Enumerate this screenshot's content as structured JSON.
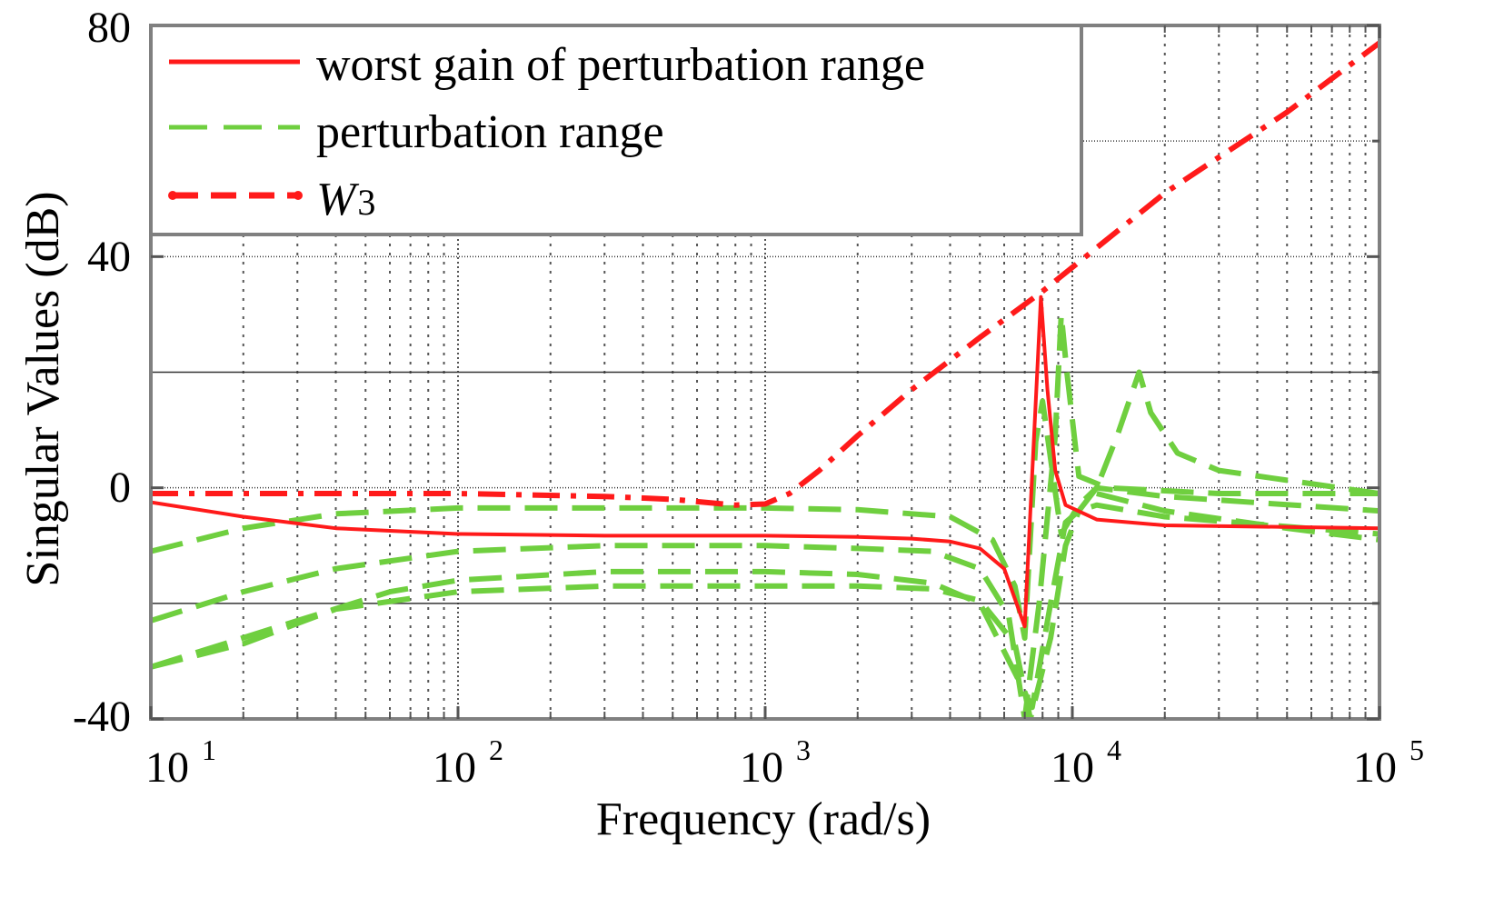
{
  "chart_data": {
    "type": "line",
    "xscale": "log",
    "xlabel": "Frequency (rad/s)",
    "ylabel": "Singular Values (dB)",
    "xlim": [
      10,
      100000
    ],
    "ylim": [
      -40,
      80
    ],
    "x_ticks": [
      {
        "value": 10,
        "base": "10",
        "exp": "1"
      },
      {
        "value": 100,
        "base": "10",
        "exp": "2"
      },
      {
        "value": 1000,
        "base": "10",
        "exp": "3"
      },
      {
        "value": 10000,
        "base": "10",
        "exp": "4"
      },
      {
        "value": 100000,
        "base": "10",
        "exp": "5"
      }
    ],
    "y_ticks": [
      {
        "value": -40,
        "label": "-40"
      },
      {
        "value": 0,
        "label": "0"
      },
      {
        "value": 40,
        "label": "40"
      },
      {
        "value": 80,
        "label": "80"
      }
    ],
    "grid": true,
    "legend": {
      "position": "top-left",
      "entries": [
        {
          "label": "worst gain of perturbation range",
          "style": "solid-red"
        },
        {
          "label": "perturbation range",
          "style": "dashed-green"
        },
        {
          "label": "W",
          "subscript": "3",
          "style": "dashdot-red"
        }
      ]
    },
    "colors": {
      "red": "#ff1a1a",
      "green": "#6fcf3f",
      "grid": "#000000",
      "frame": "#808080"
    },
    "series": [
      {
        "name": "worst gain of perturbation range",
        "style": "solid",
        "color": "#ff1a1a",
        "points": [
          [
            10,
            -2.5
          ],
          [
            20,
            -5
          ],
          [
            40,
            -7
          ],
          [
            100,
            -8
          ],
          [
            300,
            -8.3
          ],
          [
            1000,
            -8.3
          ],
          [
            2000,
            -8.5
          ],
          [
            3000,
            -8.8
          ],
          [
            4000,
            -9.3
          ],
          [
            5000,
            -10.5
          ],
          [
            6000,
            -14
          ],
          [
            7000,
            -24
          ],
          [
            7900,
            33
          ],
          [
            8300,
            17
          ],
          [
            8800,
            3
          ],
          [
            9500,
            -3
          ],
          [
            12000,
            -5.5
          ],
          [
            20000,
            -6.5
          ],
          [
            100000,
            -7
          ]
        ]
      },
      {
        "name": "W3",
        "style": "dashdot",
        "color": "#ff1a1a",
        "points": [
          [
            10,
            -1
          ],
          [
            100,
            -1
          ],
          [
            300,
            -1.5
          ],
          [
            500,
            -2
          ],
          [
            800,
            -3
          ],
          [
            1000,
            -2.8
          ],
          [
            1200,
            -1
          ],
          [
            1500,
            3
          ],
          [
            2000,
            9
          ],
          [
            3000,
            17
          ],
          [
            5000,
            26
          ],
          [
            8000,
            34
          ],
          [
            20000,
            51
          ],
          [
            50000,
            65
          ],
          [
            100000,
            77
          ]
        ]
      },
      {
        "name": "perturbation range 1",
        "style": "dashed",
        "color": "#6fcf3f",
        "points": [
          [
            10,
            -11
          ],
          [
            20,
            -7
          ],
          [
            40,
            -4.5
          ],
          [
            100,
            -3.5
          ],
          [
            1000,
            -3.5
          ],
          [
            2000,
            -3.8
          ],
          [
            4000,
            -5
          ],
          [
            5500,
            -9
          ],
          [
            6500,
            -17
          ],
          [
            7000,
            -26
          ],
          [
            7600,
            8
          ],
          [
            8000,
            15
          ],
          [
            8600,
            3
          ],
          [
            9200,
            -8
          ],
          [
            10500,
            -3
          ],
          [
            12000,
            0
          ],
          [
            20000,
            -1.5
          ],
          [
            100000,
            -4
          ]
        ]
      },
      {
        "name": "perturbation range 2",
        "style": "dashed",
        "color": "#6fcf3f",
        "points": [
          [
            10,
            -23
          ],
          [
            20,
            -18
          ],
          [
            40,
            -14
          ],
          [
            100,
            -11
          ],
          [
            300,
            -10
          ],
          [
            1000,
            -10
          ],
          [
            2000,
            -10.5
          ],
          [
            3500,
            -11
          ],
          [
            5000,
            -14
          ],
          [
            6200,
            -22
          ],
          [
            7000,
            -40
          ],
          [
            7800,
            -20
          ],
          [
            8800,
            9
          ],
          [
            9200,
            30
          ],
          [
            9600,
            20
          ],
          [
            10500,
            2
          ],
          [
            13000,
            0
          ],
          [
            30000,
            -1
          ],
          [
            100000,
            -1
          ]
        ]
      },
      {
        "name": "perturbation range 3",
        "style": "dashed",
        "color": "#6fcf3f",
        "points": [
          [
            10,
            -31
          ],
          [
            20,
            -27
          ],
          [
            40,
            -21
          ],
          [
            100,
            -18
          ],
          [
            300,
            -17
          ],
          [
            1000,
            -17
          ],
          [
            2000,
            -17
          ],
          [
            3500,
            -17.5
          ],
          [
            5000,
            -19.5
          ],
          [
            6500,
            -27
          ],
          [
            7300,
            -40
          ],
          [
            8500,
            -26
          ],
          [
            9500,
            -10
          ],
          [
            10500,
            -4
          ],
          [
            12000,
            0
          ],
          [
            14000,
            9
          ],
          [
            16500,
            20
          ],
          [
            18000,
            13
          ],
          [
            22000,
            6
          ],
          [
            30000,
            3
          ],
          [
            100000,
            -1
          ]
        ]
      },
      {
        "name": "perturbation range 4",
        "style": "dashed",
        "color": "#6fcf3f",
        "points": [
          [
            10,
            -31
          ],
          [
            30,
            -23
          ],
          [
            60,
            -18
          ],
          [
            100,
            -16
          ],
          [
            300,
            -14.5
          ],
          [
            1000,
            -14.5
          ],
          [
            2000,
            -15
          ],
          [
            3500,
            -16.5
          ],
          [
            5000,
            -20
          ],
          [
            6500,
            -32
          ],
          [
            7400,
            -38
          ],
          [
            8500,
            -20
          ],
          [
            9500,
            -6
          ],
          [
            10500,
            -4
          ],
          [
            12000,
            -3
          ],
          [
            20000,
            -5
          ],
          [
            100000,
            -8
          ]
        ]
      },
      {
        "name": "perturbation range 5",
        "style": "dashed",
        "color": "#6fcf3f",
        "points": [
          [
            12000,
            -1
          ],
          [
            20000,
            -4
          ],
          [
            50000,
            -7
          ],
          [
            100000,
            -9
          ]
        ]
      }
    ]
  }
}
